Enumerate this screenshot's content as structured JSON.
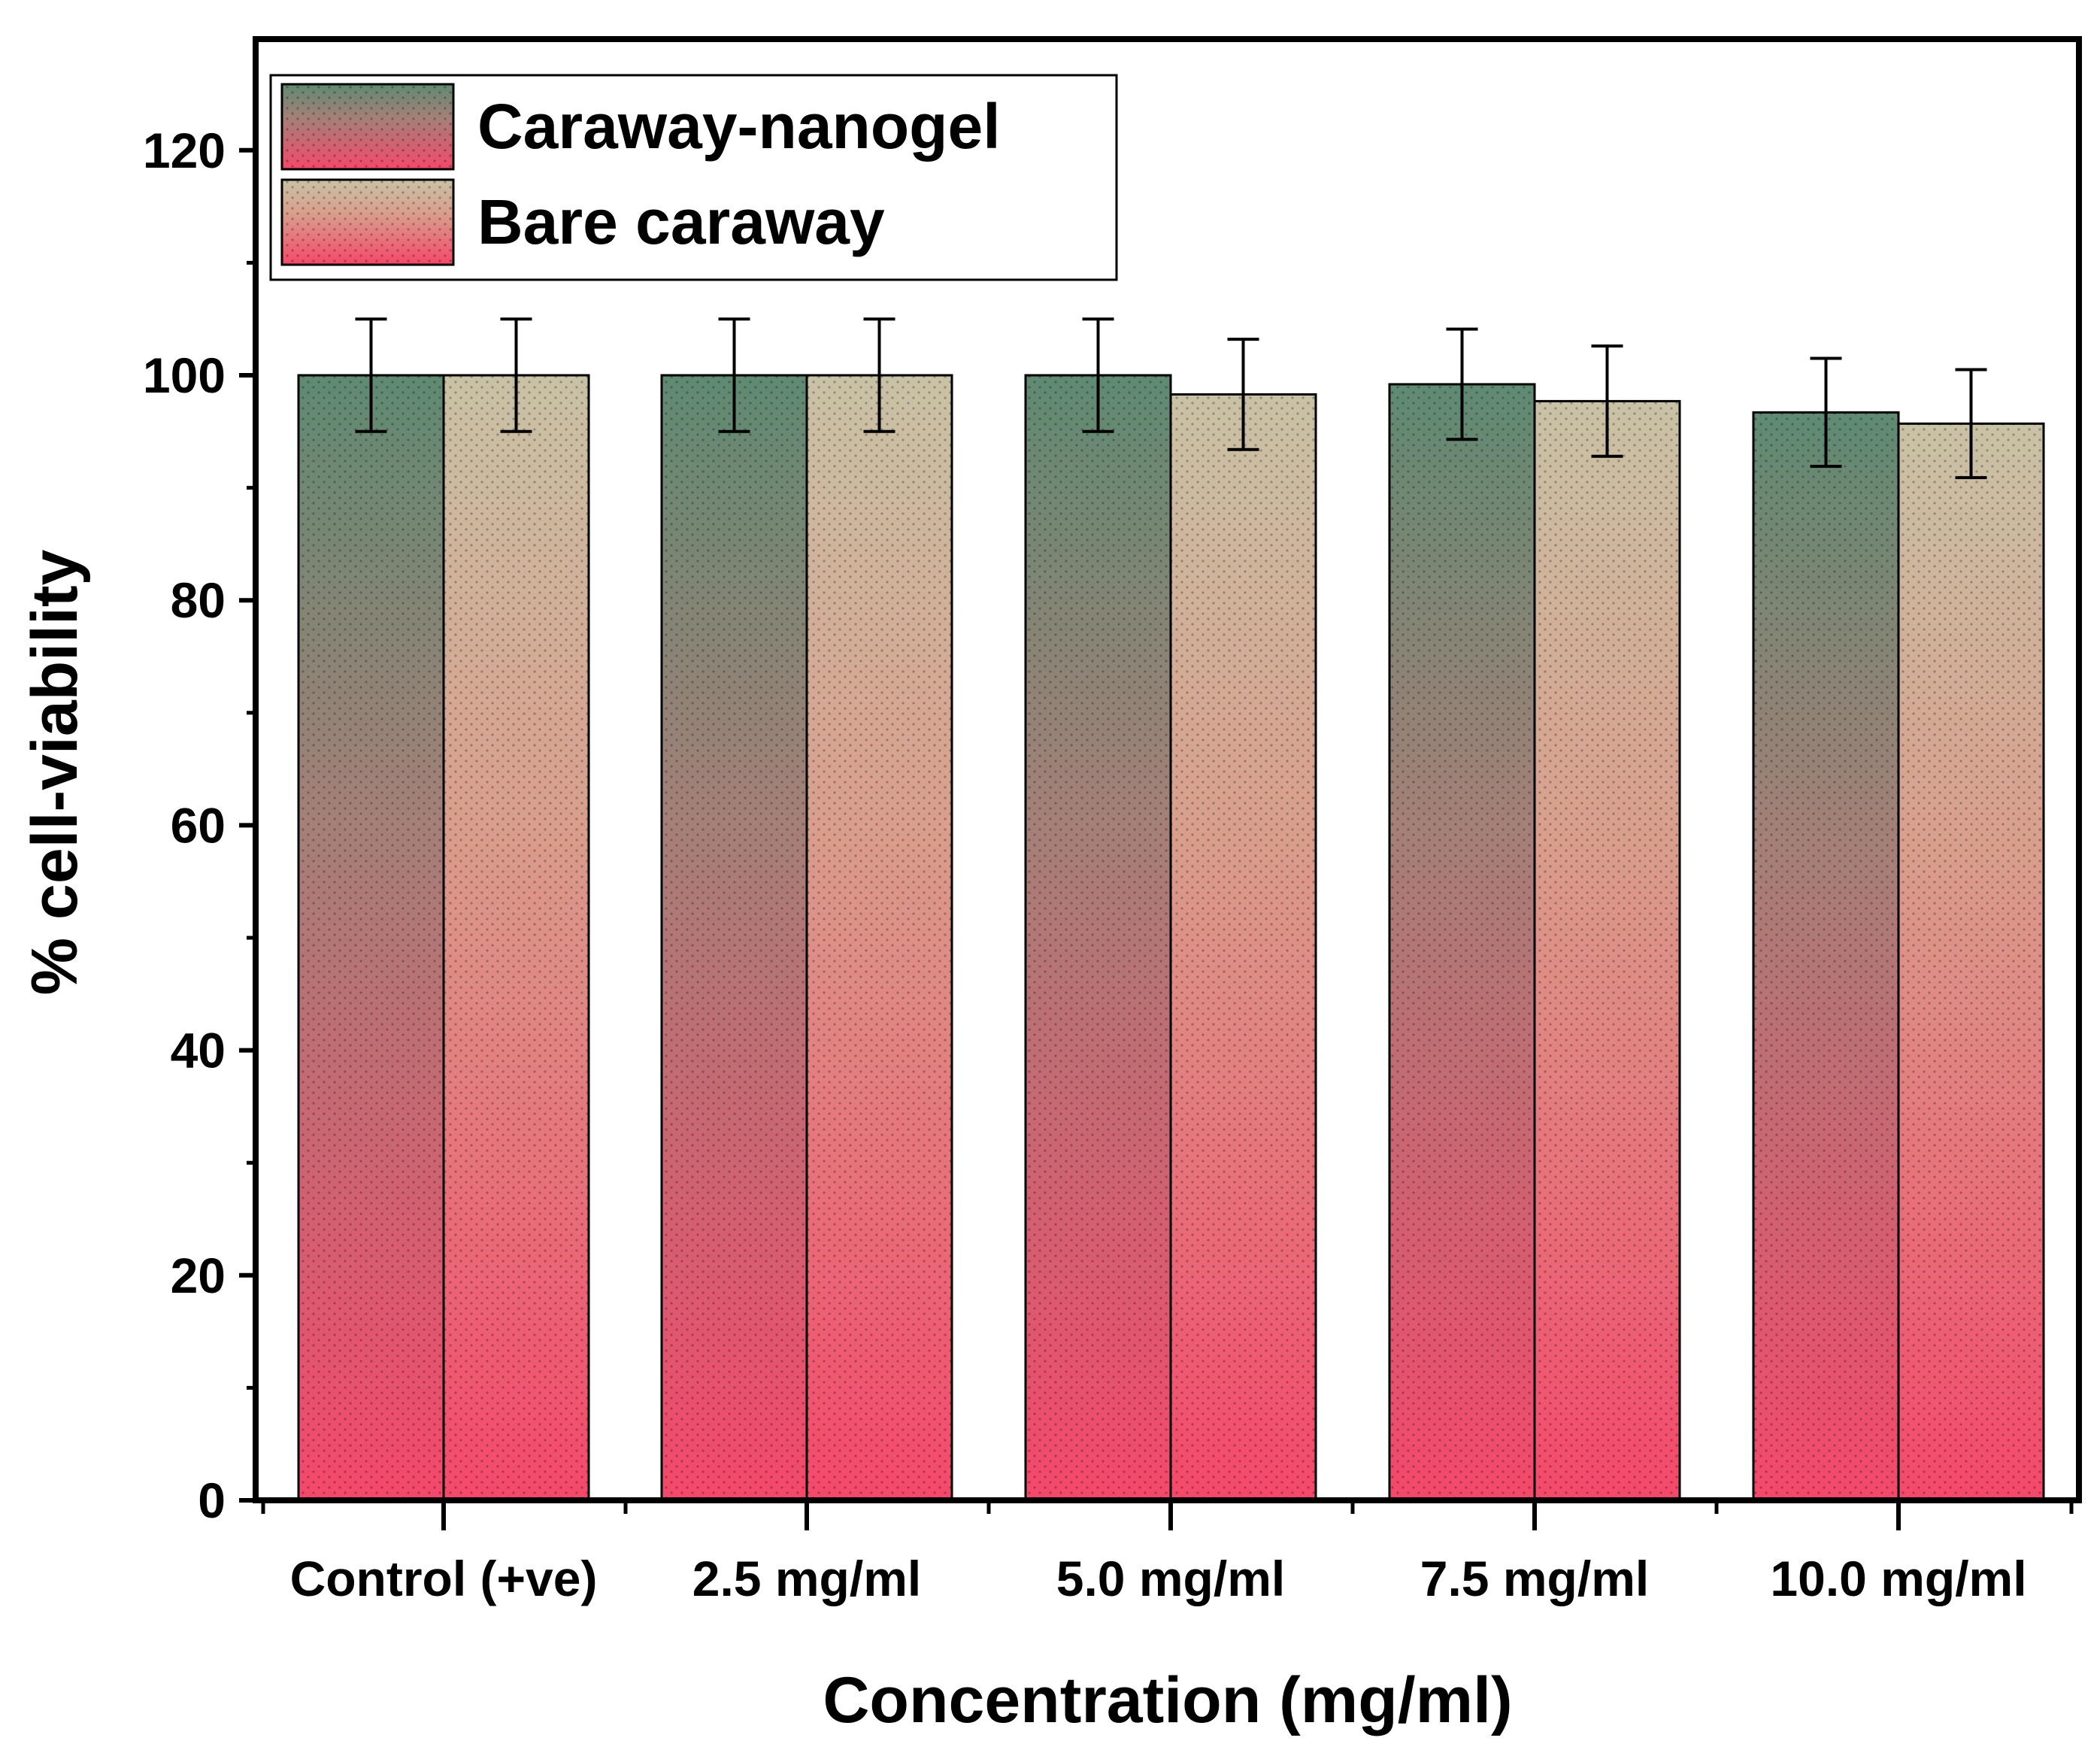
{
  "chart_data": {
    "type": "bar",
    "title": "",
    "xlabel": "Concentration (mg/ml)",
    "ylabel": "% cell-viability",
    "categories": [
      "Control (+ve)",
      "2.5 mg/ml",
      "5.0 mg/ml",
      "7.5 mg/ml",
      "10.0 mg/ml"
    ],
    "series": [
      {
        "name": "Caraway-nanogel",
        "values": [
          100,
          100,
          100,
          99.2,
          96.7
        ],
        "errors": [
          5.0,
          5.0,
          5.0,
          4.9,
          4.8
        ],
        "color_top": "#5f8a72",
        "color_mid": "#a58078",
        "color_bottom": "#f5486a"
      },
      {
        "name": "Bare caraway",
        "values": [
          100,
          100,
          98.3,
          97.7,
          95.7
        ],
        "errors": [
          5.0,
          5.0,
          4.9,
          4.9,
          4.8
        ],
        "color_top": "#c9c2a6",
        "color_mid": "#d99e8c",
        "color_bottom": "#f5486a"
      }
    ],
    "yticks": [
      0,
      20,
      40,
      60,
      80,
      100,
      120
    ],
    "ylim": [
      0,
      130
    ],
    "legend_position": "top-left",
    "grid": false
  }
}
